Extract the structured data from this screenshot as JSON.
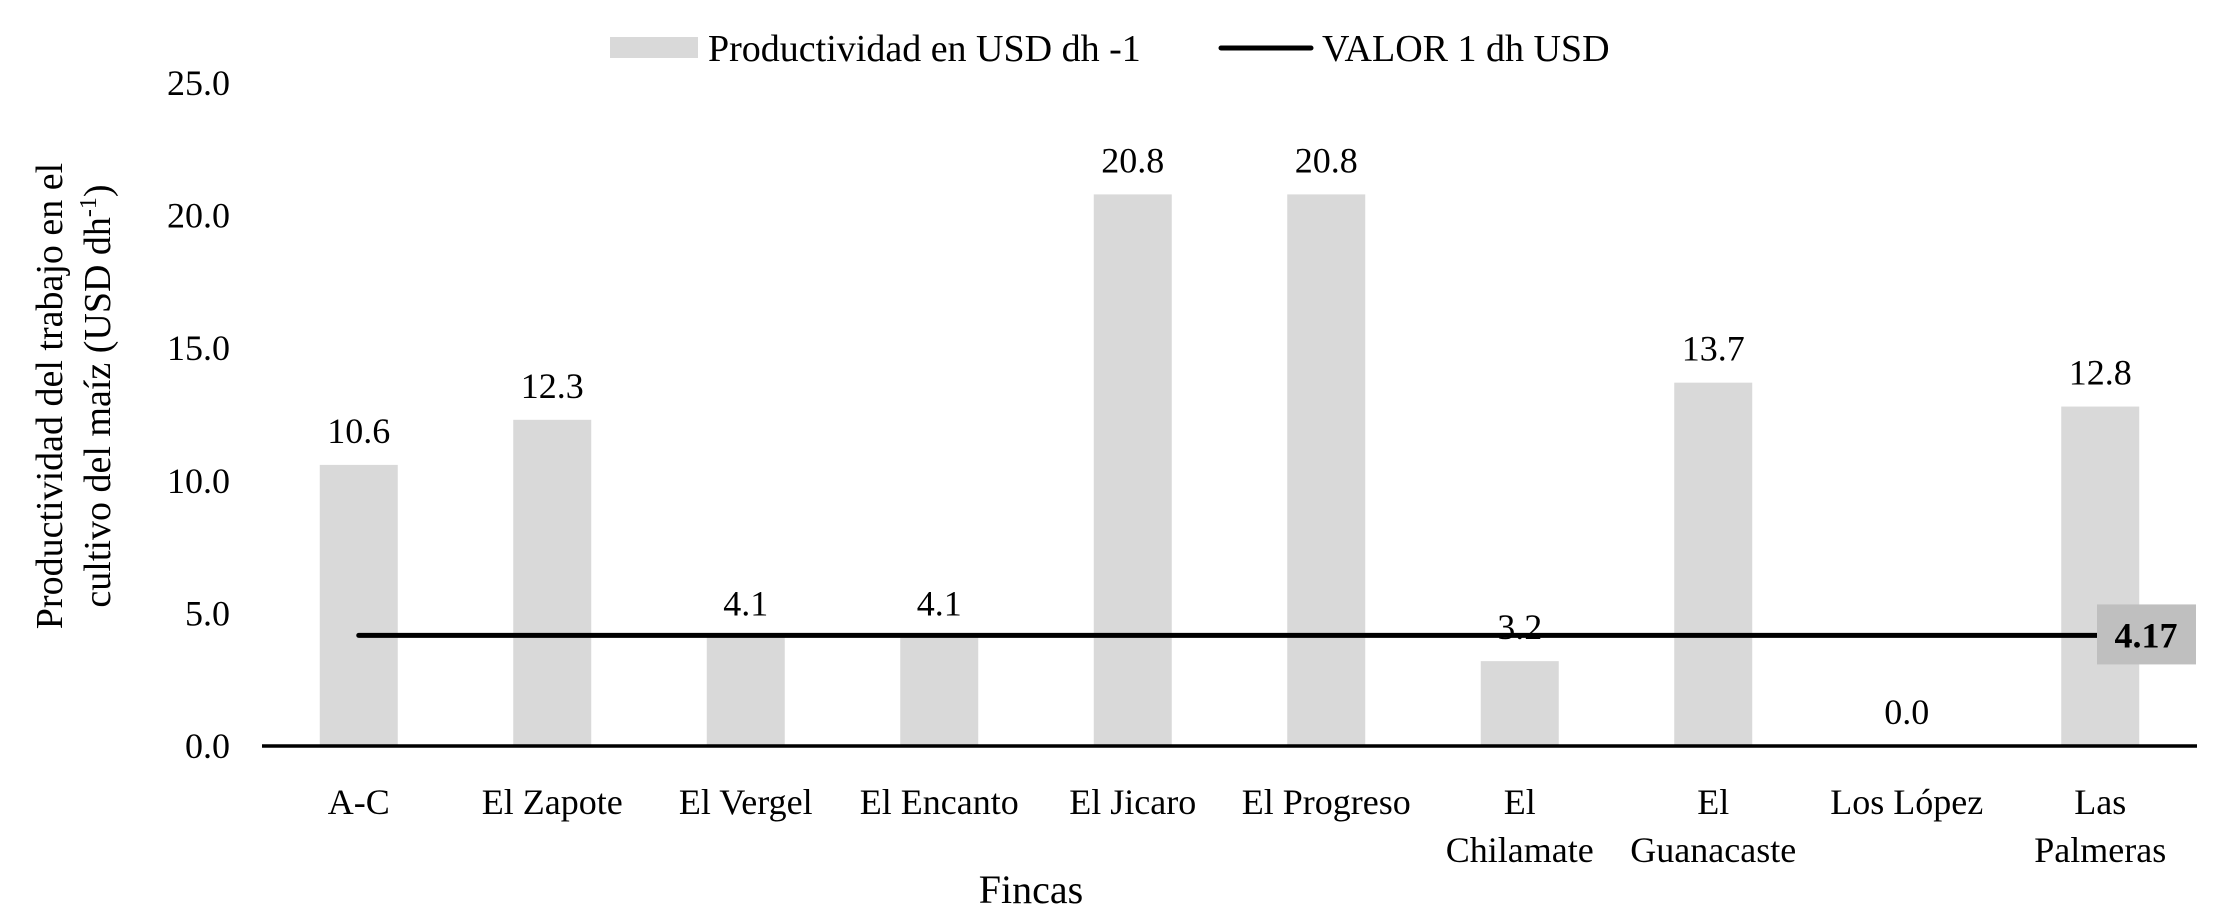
{
  "chart_data": {
    "type": "bar",
    "title": "",
    "xlabel": "Fincas",
    "ylabel_lines": [
      "Productividad del trabajo en el",
      "cultivo del maíz (USD dh",
      "-1",
      ")"
    ],
    "ylabel": "Productividad del trabajo en el cultivo del maíz (USD dh-1)",
    "ylim": [
      0,
      25
    ],
    "yticks": [
      "0.0",
      "5.0",
      "10.0",
      "15.0",
      "20.0",
      "25.0"
    ],
    "ytick_values": [
      0,
      5,
      10,
      15,
      20,
      25
    ],
    "grid": false,
    "legend_position": "top",
    "categories": [
      [
        "A-C"
      ],
      [
        "El Zapote"
      ],
      [
        "El Vergel"
      ],
      [
        "El Encanto"
      ],
      [
        "El Jicaro"
      ],
      [
        "El Progreso"
      ],
      [
        "El",
        "Chilamate"
      ],
      [
        "El",
        "Guanacaste"
      ],
      [
        "Los López"
      ],
      [
        "Las",
        "Palmeras"
      ]
    ],
    "series": [
      {
        "name": "Productividad en USD dh -1",
        "type": "bar",
        "color": "#d9d9d9",
        "values": [
          10.6,
          12.3,
          4.1,
          4.1,
          20.8,
          20.8,
          3.2,
          13.7,
          0.0,
          12.8
        ],
        "labels": [
          "10.6",
          "12.3",
          "4.1",
          "4.1",
          "20.8",
          "20.8",
          "3.2",
          "13.7",
          "0.0",
          "12.8"
        ]
      },
      {
        "name": "VALOR 1 dh USD",
        "type": "line",
        "color": "#000000",
        "values": [
          4.17,
          4.17,
          4.17,
          4.17,
          4.17,
          4.17,
          4.17,
          4.17,
          4.17,
          4.17
        ],
        "end_label": "4.17",
        "end_label_bg": "#bfbfbf"
      }
    ]
  },
  "legend": {
    "bar_label": "Productividad en USD dh -1",
    "line_label": "VALOR 1 dh USD"
  }
}
